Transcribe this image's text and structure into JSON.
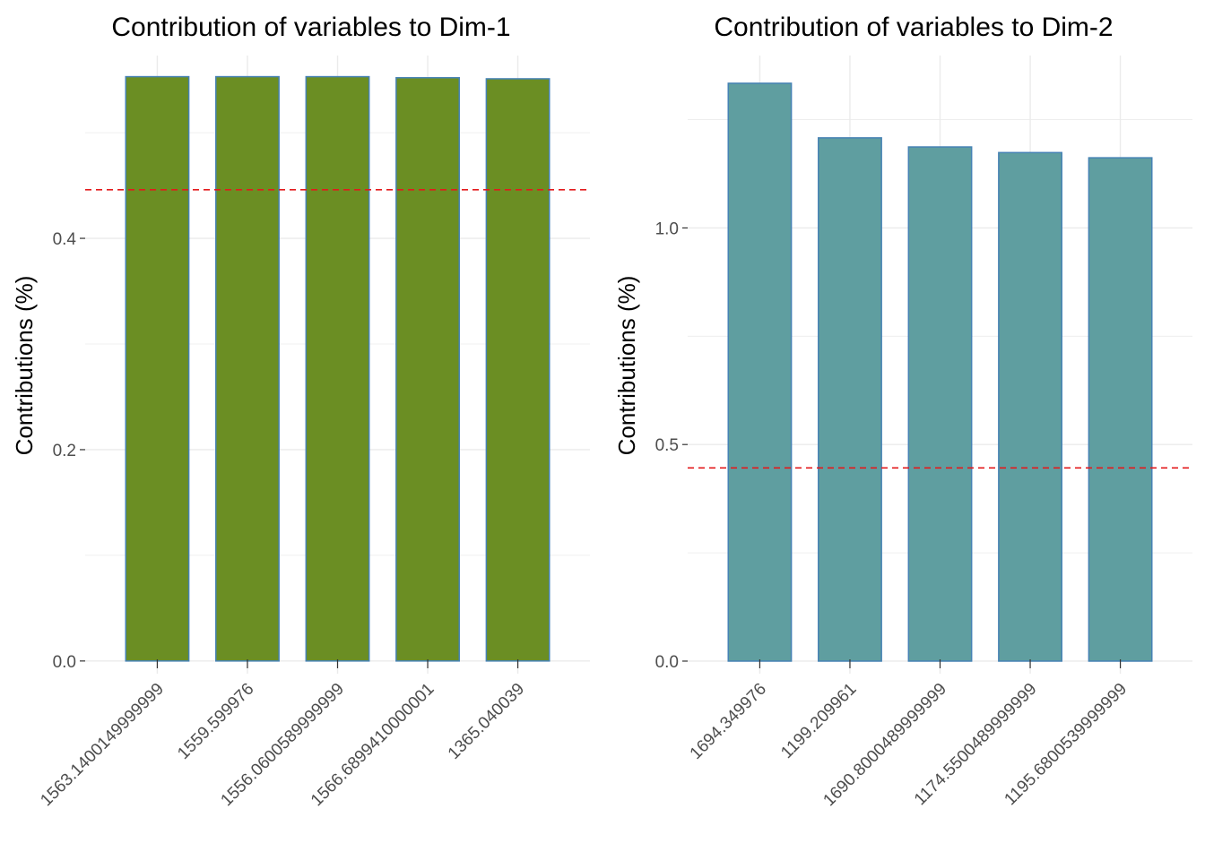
{
  "chart_data": [
    {
      "type": "bar",
      "title": "Contribution of variables to Dim-1",
      "xlabel": "",
      "ylabel": "Contributions (%)",
      "categories": [
        "1563.1400149999999",
        "1559.599976",
        "1556.0600589999999",
        "1566.6899410000001",
        "1365.040039"
      ],
      "values": [
        0.553,
        0.553,
        0.553,
        0.552,
        0.551
      ],
      "ylim": [
        -0.012,
        0.573
      ],
      "yticks": [
        0.0,
        0.2,
        0.4
      ],
      "ytick_labels": [
        "0.0",
        "0.2",
        "0.4"
      ],
      "reference_line": 0.446,
      "bar_fill": "#6b8e23",
      "bar_stroke": "#4682b4",
      "ref_color": "#e31a1c",
      "grid": true
    },
    {
      "type": "bar",
      "title": "Contribution of variables to Dim-2",
      "xlabel": "",
      "ylabel": "Contributions (%)",
      "categories": [
        "1694.349976",
        "1199.209961",
        "1690.8000489999999",
        "1174.5500489999999",
        "1195.6800539999999"
      ],
      "values": [
        1.334,
        1.208,
        1.187,
        1.174,
        1.162
      ],
      "ylim": [
        -0.029,
        1.398
      ],
      "yticks": [
        0.0,
        0.5,
        1.0
      ],
      "ytick_labels": [
        "0.0",
        "0.5",
        "1.0"
      ],
      "reference_line": 0.446,
      "bar_fill": "#5f9ea0",
      "bar_stroke": "#4682b4",
      "ref_color": "#e31a1c",
      "grid": true
    }
  ]
}
